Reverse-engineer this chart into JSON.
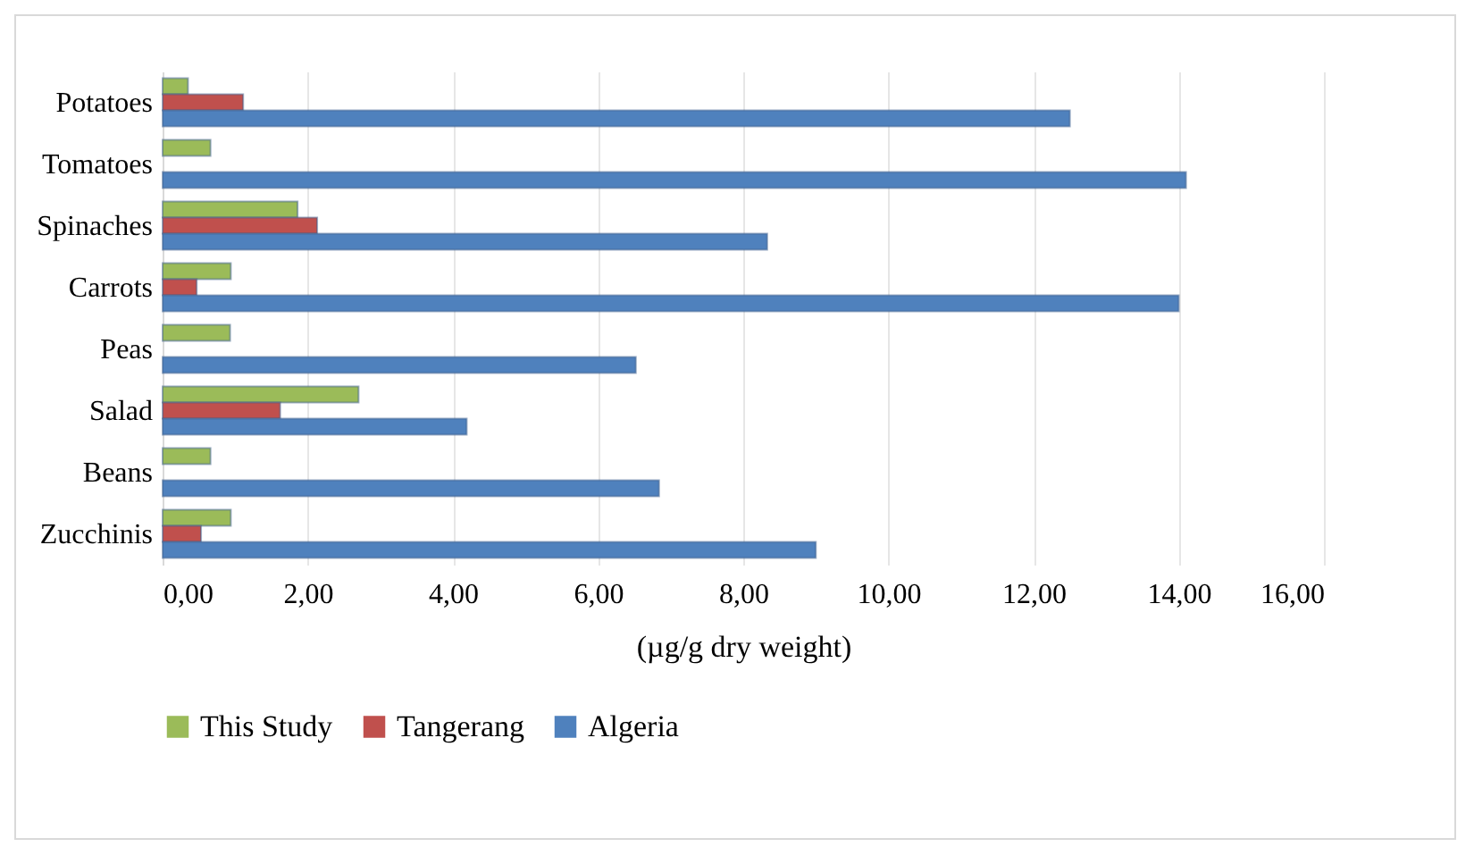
{
  "chart_data": {
    "type": "bar",
    "orientation": "horizontal",
    "xlabel": "(µg/g  dry weight)",
    "categories": [
      "Potatoes",
      "Tomatoes",
      "Spinaches",
      "Carrots",
      "Peas",
      "Salad",
      "Beans",
      "Zucchinis"
    ],
    "series": [
      {
        "name": "This Study",
        "color": "#9bbb59",
        "values": [
          0.35,
          0.66,
          1.86,
          0.94,
          0.93,
          2.7,
          0.66,
          0.94
        ]
      },
      {
        "name": "Tangerang",
        "color": "#c0504d",
        "values": [
          1.11,
          null,
          2.13,
          0.47,
          null,
          1.62,
          null,
          0.53
        ]
      },
      {
        "name": "Algeria",
        "color": "#4f81bd",
        "values": [
          12.5,
          14.1,
          8.33,
          14.0,
          6.52,
          4.19,
          6.84,
          9.0
        ]
      }
    ],
    "xlim": [
      0,
      16
    ],
    "xticks": [
      {
        "value": 0,
        "label": "0,00"
      },
      {
        "value": 2,
        "label": "2,00"
      },
      {
        "value": 4,
        "label": "4,00"
      },
      {
        "value": 6,
        "label": "6,00"
      },
      {
        "value": 8,
        "label": "8,00"
      },
      {
        "value": 10,
        "label": "10,00"
      },
      {
        "value": 12,
        "label": "12,00"
      },
      {
        "value": 14,
        "label": "14,00"
      },
      {
        "value": 16,
        "label": "16,00"
      }
    ],
    "grid": "x",
    "legend": "bottom"
  }
}
